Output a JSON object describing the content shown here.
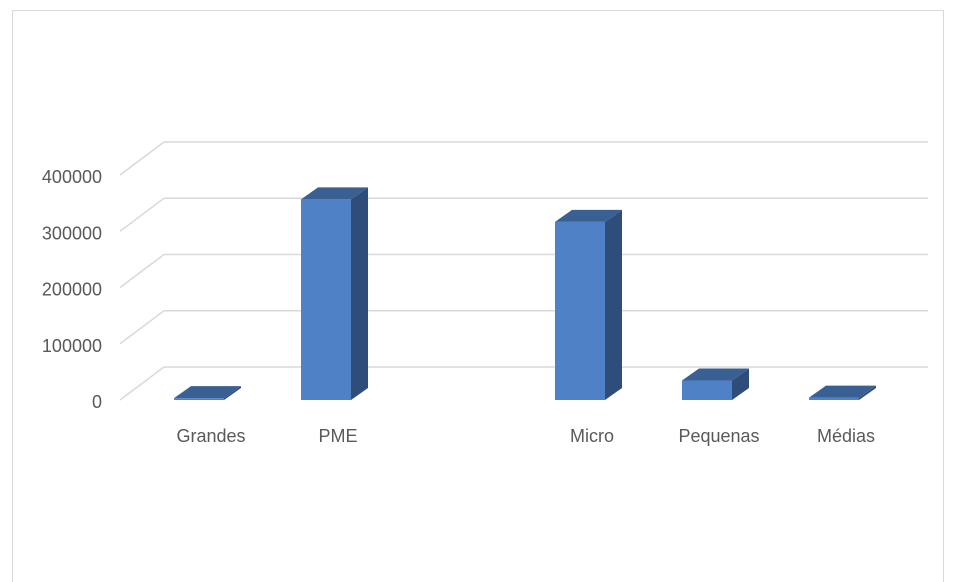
{
  "chart_data": {
    "type": "bar",
    "style": "3d-column",
    "categories": [
      "Grandes",
      "PME",
      "",
      "Micro",
      "Pequenas",
      "Médias"
    ],
    "values": [
      1500,
      355000,
      null,
      315000,
      33000,
      2500
    ],
    "ylim": [
      0,
      400000
    ],
    "yticks": [
      0,
      100000,
      200000,
      300000,
      400000
    ],
    "ytick_labels": [
      "0",
      "100000",
      "200000",
      "300000",
      "400000"
    ],
    "grid": true,
    "legend": "none",
    "colors": {
      "front": "#4f81c7",
      "side": "#2e4d7a",
      "top": "#3a5f93",
      "grid": "#d9d9d9",
      "text": "#595959"
    }
  }
}
